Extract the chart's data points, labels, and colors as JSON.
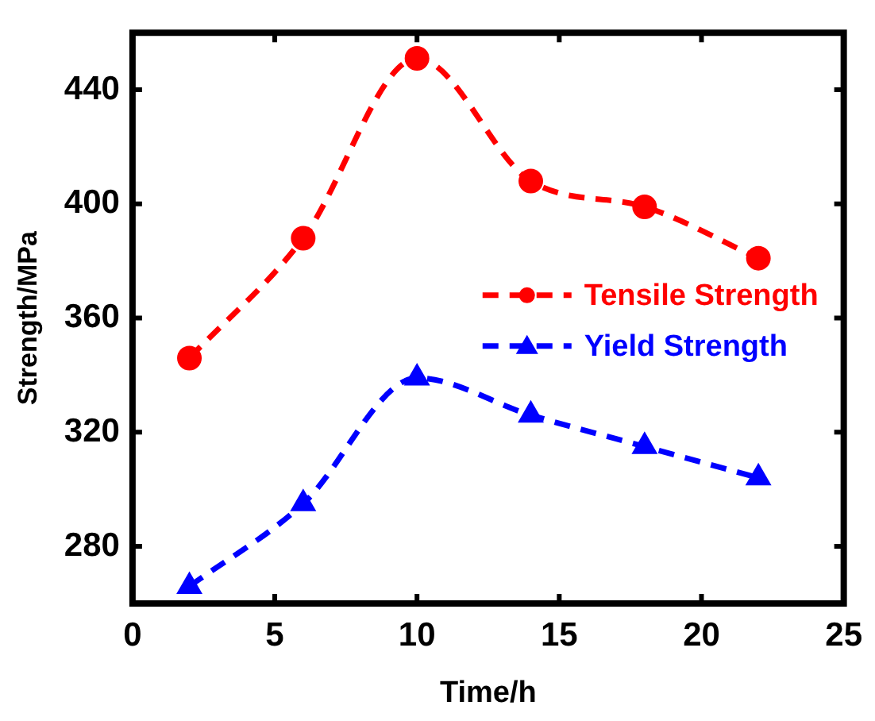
{
  "chart_data": {
    "type": "line",
    "xlabel": "Time/h",
    "ylabel": "Strength/MPa",
    "x": [
      2,
      6,
      10,
      14,
      18,
      22
    ],
    "series": [
      {
        "name": "Tensile Strength",
        "color": "#ff0000",
        "marker": "circle",
        "values": [
          346,
          388,
          451,
          408,
          399,
          381
        ]
      },
      {
        "name": "Yield Strength",
        "color": "#0000ff",
        "marker": "triangle",
        "values": [
          266,
          295,
          339,
          326,
          315,
          304
        ]
      }
    ],
    "xlim": [
      0,
      25
    ],
    "xticks": [
      0,
      5,
      10,
      15,
      20,
      25
    ],
    "ylim": [
      260,
      460
    ],
    "yticks": [
      280,
      320,
      360,
      400,
      440
    ],
    "grid": false,
    "legend": "right",
    "line_style": "dashed"
  }
}
